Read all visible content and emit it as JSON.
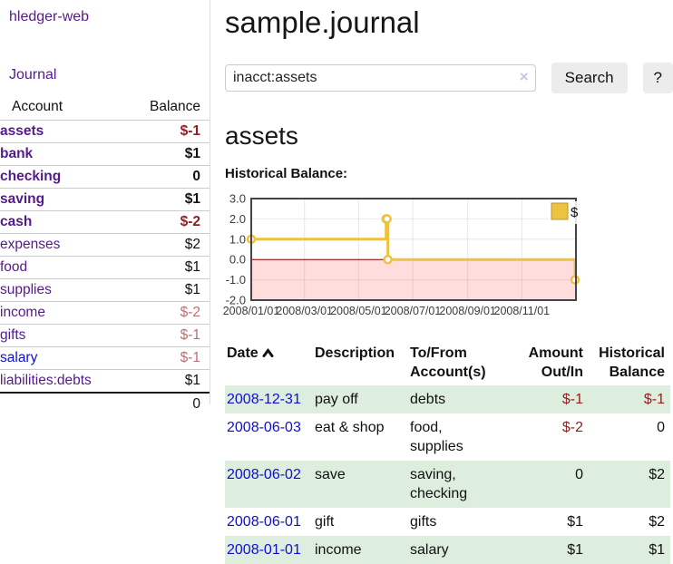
{
  "app": {
    "title": "hledger-web"
  },
  "colors": {
    "link_purple": "#551a8b",
    "link_blue": "#0f0fd0",
    "negative_strong": "#8e1f1f",
    "negative_muted": "#b87072",
    "row_stripe_green": "#deeede",
    "chart_line_gold": "#edc240",
    "chart_negative_fill": "#ffdddd",
    "chart_zero_line": "#8b0000",
    "button_gray": "#ececec"
  },
  "sidebar": {
    "journal_label": "Journal",
    "accounts_table": {
      "account_header": "Account",
      "balance_header": "Balance",
      "rows": [
        {
          "name": "assets",
          "balance": "$-1"
        },
        {
          "name": "bank",
          "balance": "$1"
        },
        {
          "name": "checking",
          "balance": "0"
        },
        {
          "name": "saving",
          "balance": "$1"
        },
        {
          "name": "cash",
          "balance": "$-2"
        },
        {
          "name": "expenses",
          "balance": "$2"
        },
        {
          "name": "food",
          "balance": "$1"
        },
        {
          "name": "supplies",
          "balance": "$1"
        },
        {
          "name": "income",
          "balance": "$-2"
        },
        {
          "name": "gifts",
          "balance": "$-1"
        },
        {
          "name": "salary",
          "balance": "$-1"
        },
        {
          "name": "liabilities:debts",
          "balance": "$1"
        }
      ],
      "total": "0"
    }
  },
  "main": {
    "title": "sample.journal",
    "search": {
      "value": "inacct:assets",
      "clear_icon": "×",
      "search_button": "Search",
      "help_button": "?"
    },
    "account_heading": "assets",
    "chart_label": "Historical Balance:",
    "table": {
      "headers": {
        "date": "Date",
        "description": "Description",
        "tofrom": "To/From Account(s)",
        "amount": "Amount Out/In",
        "balance": "Historical Balance"
      },
      "rows": [
        {
          "date": "2008-12-31",
          "description": "pay off",
          "accounts": "debts",
          "amount": "$-1",
          "balance": "$-1"
        },
        {
          "date": "2008-06-03",
          "description": "eat & shop",
          "accounts": "food, supplies",
          "amount": "$-2",
          "balance": "0"
        },
        {
          "date": "2008-06-02",
          "description": "save",
          "accounts": "saving, checking",
          "amount": "0",
          "balance": "$2"
        },
        {
          "date": "2008-06-01",
          "description": "gift",
          "accounts": "gifts",
          "amount": "$1",
          "balance": "$2"
        },
        {
          "date": "2008-01-01",
          "description": "income",
          "accounts": "salary",
          "amount": "$1",
          "balance": "$1"
        }
      ]
    }
  },
  "chart_data": {
    "type": "line",
    "title": "Historical Balance:",
    "step": true,
    "xlim": [
      0,
      366
    ],
    "ylim": [
      -2,
      3
    ],
    "yticks": [
      3.0,
      2.0,
      1.0,
      0.0,
      -1.0,
      -2.0
    ],
    "xticks": [
      {
        "x": 0,
        "label": "2008/01/01"
      },
      {
        "x": 60,
        "label": "2008/03/01"
      },
      {
        "x": 121,
        "label": "2008/05/01"
      },
      {
        "x": 182,
        "label": "2008/07/01"
      },
      {
        "x": 244,
        "label": "2008/09/01"
      },
      {
        "x": 305,
        "label": "2008/11/01"
      }
    ],
    "series": [
      {
        "name": "$",
        "color": "#edc240",
        "points": [
          {
            "date": "2008-01-01",
            "x": 0,
            "y": 1
          },
          {
            "date": "2008-06-01",
            "x": 152,
            "y": 2
          },
          {
            "date": "2008-06-02",
            "x": 153,
            "y": 2
          },
          {
            "date": "2008-06-03",
            "x": 154,
            "y": 0
          },
          {
            "date": "2008-12-31",
            "x": 365,
            "y": -1
          }
        ]
      }
    ],
    "negative_fill": "#ffdddd",
    "zero_line_color": "#8b0000",
    "legend": {
      "label": "$",
      "position": "top-right"
    },
    "grid": true
  }
}
